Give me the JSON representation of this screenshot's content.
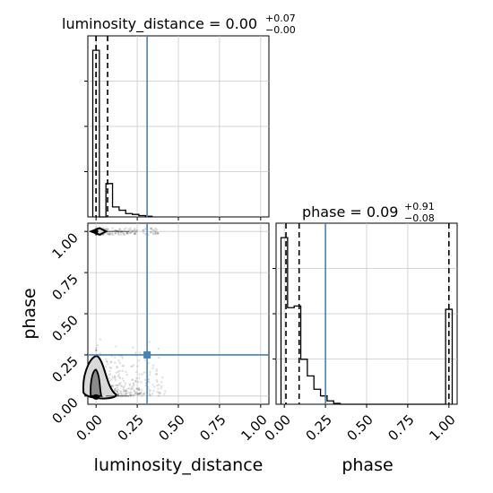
{
  "chart_data": {
    "type": "corner",
    "parameters": [
      "luminosity_distance",
      "phase"
    ],
    "axis_labels": {
      "x_left": "luminosity_distance",
      "x_right": "phase",
      "y_left": "phase"
    },
    "titles": [
      {
        "param": "luminosity_distance",
        "text": "luminosity_distance = 0.00",
        "plus": "+0.07",
        "minus": "−0.00"
      },
      {
        "param": "phase",
        "text": "phase = 0.09",
        "plus": "+0.91",
        "minus": "−0.08"
      }
    ],
    "ticks": [
      "0.00",
      "0.25",
      "0.50",
      "0.75",
      "1.00"
    ],
    "truth": {
      "luminosity_distance": 0.31,
      "phase": 0.25
    },
    "truth_color": "#4682b4",
    "ranges": {
      "luminosity_distance": [
        -0.05,
        1.05
      ],
      "phase": [
        -0.05,
        1.05
      ]
    },
    "grid": true,
    "hist_luminosity_distance": {
      "quantiles": [
        0.0,
        0.0,
        0.07
      ],
      "bin_edges": [
        -0.02,
        0.02,
        0.06,
        0.1,
        0.14,
        0.18,
        0.22,
        0.26,
        0.3,
        0.34
      ],
      "counts": [
        1.0,
        0.0,
        0.2,
        0.06,
        0.04,
        0.02,
        0.015,
        0.008,
        0.004
      ]
    },
    "hist_phase": {
      "quantiles": [
        0.01,
        0.09,
        1.0
      ],
      "bin_edges": [
        -0.02,
        0.02,
        0.06,
        0.1,
        0.14,
        0.18,
        0.22,
        0.26,
        0.3,
        0.34,
        0.98,
        1.02
      ],
      "counts": [
        1.0,
        0.58,
        0.59,
        0.27,
        0.17,
        0.09,
        0.05,
        0.02,
        0.005,
        0.0,
        0.57
      ]
    }
  }
}
